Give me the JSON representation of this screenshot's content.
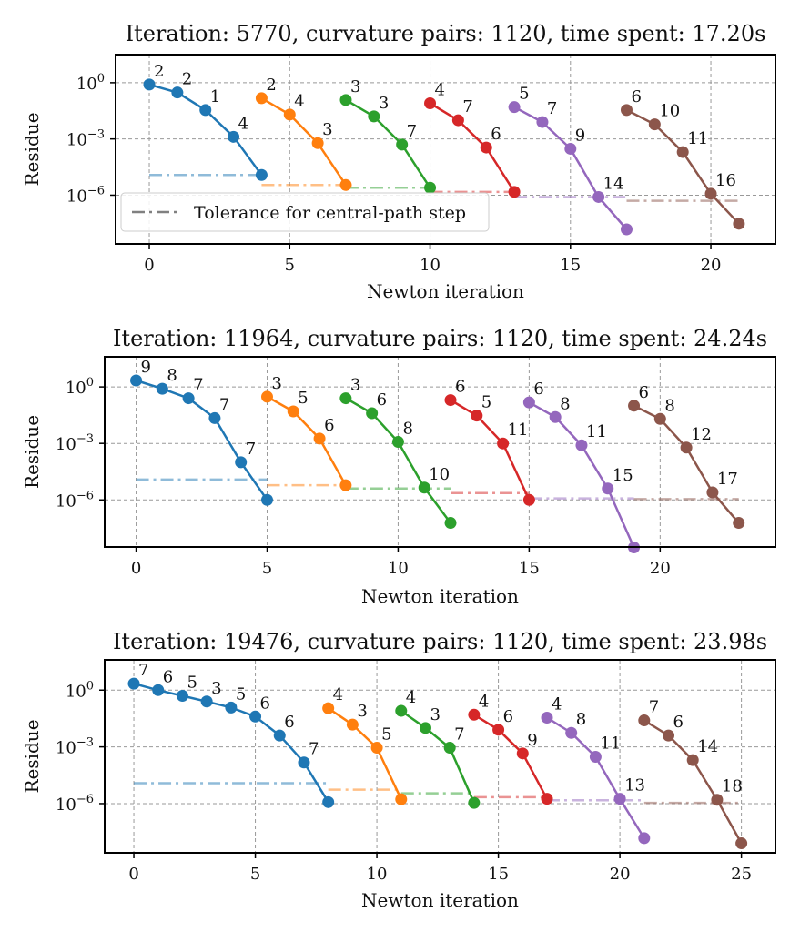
{
  "chart_data": [
    {
      "type": "line",
      "title": "Iteration: 5770, curvature pairs: 1120, time spent: 17.20s",
      "xlabel": "Newton iteration",
      "ylabel": "Residue",
      "xlim": [
        -1.2,
        22.3
      ],
      "ylim_log10": [
        -8.6,
        1.5
      ],
      "y_scale": "log",
      "xticks": [
        0,
        5,
        10,
        15,
        20
      ],
      "yticks": [
        {
          "exp": 0,
          "label_base": "10",
          "label_exp": "0"
        },
        {
          "exp": -3,
          "label_base": "10",
          "label_exp": "−3"
        },
        {
          "exp": -6,
          "label_base": "10",
          "label_exp": "−6"
        }
      ],
      "grid": true,
      "legend": {
        "location": "lower-left",
        "entries": [
          "Tolerance for central-path step"
        ]
      },
      "series": [
        {
          "color": "#1f77b4",
          "x": [
            0,
            1,
            2,
            3,
            4
          ],
          "y": [
            0.8,
            0.3,
            0.035,
            0.0013,
            1.2e-05
          ],
          "labels": [
            "2",
            "2",
            "1",
            "4",
            ""
          ],
          "tolerance": {
            "x": [
              0,
              4
            ],
            "y": 1.2e-05
          }
        },
        {
          "color": "#ff7f0e",
          "x": [
            4,
            5,
            6,
            7
          ],
          "y": [
            0.15,
            0.02,
            0.0006,
            3.5e-06
          ],
          "labels": [
            "2",
            "4",
            "3",
            ""
          ],
          "tolerance": {
            "x": [
              4,
              7
            ],
            "y": 3.5e-06
          }
        },
        {
          "color": "#2ca02c",
          "x": [
            7,
            8,
            9,
            10
          ],
          "y": [
            0.12,
            0.016,
            0.0005,
            2.5e-06
          ],
          "labels": [
            "3",
            "3",
            "7",
            ""
          ],
          "tolerance": {
            "x": [
              7,
              10
            ],
            "y": 2.5e-06
          }
        },
        {
          "color": "#d62728",
          "x": [
            10,
            11,
            12,
            13
          ],
          "y": [
            0.08,
            0.01,
            0.00035,
            1.5e-06
          ],
          "labels": [
            "4",
            "7",
            "6",
            ""
          ],
          "tolerance": {
            "x": [
              10,
              13
            ],
            "y": 1.5e-06
          }
        },
        {
          "color": "#9467bd",
          "x": [
            13,
            14,
            15,
            16,
            17
          ],
          "y": [
            0.05,
            0.008,
            0.0003,
            8e-07,
            1.5e-08
          ],
          "labels": [
            "5",
            "7",
            "9",
            "14",
            ""
          ],
          "tolerance": {
            "x": [
              13,
              17
            ],
            "y": 8e-07
          }
        },
        {
          "color": "#8c564b",
          "x": [
            17,
            18,
            19,
            20,
            21
          ],
          "y": [
            0.035,
            0.006,
            0.0002,
            1.2e-06,
            3e-08
          ],
          "labels": [
            "6",
            "10",
            "11",
            "16",
            ""
          ],
          "tolerance": {
            "x": [
              17,
              21
            ],
            "y": 5e-07
          }
        }
      ]
    },
    {
      "type": "line",
      "title": "Iteration: 11964, curvature pairs: 1120, time spent: 24.24s",
      "xlabel": "Newton iteration",
      "ylabel": "Residue",
      "xlim": [
        -1.2,
        24.4
      ],
      "ylim_log10": [
        -8.5,
        1.6
      ],
      "y_scale": "log",
      "xticks": [
        0,
        5,
        10,
        15,
        20
      ],
      "yticks": [
        {
          "exp": 0,
          "label_base": "10",
          "label_exp": "0"
        },
        {
          "exp": -3,
          "label_base": "10",
          "label_exp": "−3"
        },
        {
          "exp": -6,
          "label_base": "10",
          "label_exp": "−6"
        }
      ],
      "grid": true,
      "series": [
        {
          "color": "#1f77b4",
          "x": [
            0,
            1,
            2,
            3,
            4,
            5
          ],
          "y": [
            2.2,
            0.8,
            0.25,
            0.022,
            0.0001,
            1e-06
          ],
          "labels": [
            "9",
            "8",
            "7",
            "7",
            "7",
            ""
          ],
          "tolerance": {
            "x": [
              0,
              5
            ],
            "y": 1.2e-05
          }
        },
        {
          "color": "#ff7f0e",
          "x": [
            5,
            6,
            7,
            8
          ],
          "y": [
            0.3,
            0.05,
            0.0018,
            6e-06
          ],
          "labels": [
            "3",
            "5",
            "6",
            ""
          ],
          "tolerance": {
            "x": [
              5,
              8
            ],
            "y": 6e-06
          }
        },
        {
          "color": "#2ca02c",
          "x": [
            8,
            9,
            10,
            11,
            12
          ],
          "y": [
            0.25,
            0.04,
            0.0012,
            4.5e-06,
            6e-08
          ],
          "labels": [
            "3",
            "6",
            "8",
            "10",
            ""
          ],
          "tolerance": {
            "x": [
              8,
              12
            ],
            "y": 4e-06
          }
        },
        {
          "color": "#d62728",
          "x": [
            12,
            13,
            14,
            15
          ],
          "y": [
            0.2,
            0.03,
            0.001,
            1e-06
          ],
          "labels": [
            "6",
            "5",
            "11",
            ""
          ],
          "tolerance": {
            "x": [
              12,
              15
            ],
            "y": 2.3e-06
          }
        },
        {
          "color": "#9467bd",
          "x": [
            15,
            16,
            17,
            18,
            19
          ],
          "y": [
            0.15,
            0.025,
            0.0008,
            4e-06,
            3e-09
          ],
          "labels": [
            "6",
            "8",
            "11",
            "15",
            ""
          ],
          "tolerance": {
            "x": [
              15,
              19
            ],
            "y": 1.2e-06
          }
        },
        {
          "color": "#8c564b",
          "x": [
            19,
            20,
            21,
            22,
            23
          ],
          "y": [
            0.1,
            0.02,
            0.0006,
            2.5e-06,
            6e-08
          ],
          "labels": [
            "6",
            "8",
            "12",
            "17",
            ""
          ],
          "tolerance": {
            "x": [
              19,
              23
            ],
            "y": 1.1e-06
          }
        }
      ]
    },
    {
      "type": "line",
      "title": "Iteration: 19476, curvature pairs: 1120, time spent: 23.98s",
      "xlabel": "Newton iteration",
      "ylabel": "Residue",
      "xlim": [
        -1.2,
        26.4
      ],
      "ylim_log10": [
        -8.6,
        1.6
      ],
      "y_scale": "log",
      "xticks": [
        0,
        5,
        10,
        15,
        20,
        25
      ],
      "yticks": [
        {
          "exp": 0,
          "label_base": "10",
          "label_exp": "0"
        },
        {
          "exp": -3,
          "label_base": "10",
          "label_exp": "−3"
        },
        {
          "exp": -6,
          "label_base": "10",
          "label_exp": "−6"
        }
      ],
      "grid": true,
      "series": [
        {
          "color": "#1f77b4",
          "x": [
            0,
            1,
            2,
            3,
            4,
            5,
            6,
            7,
            8
          ],
          "y": [
            2.2,
            1.0,
            0.5,
            0.25,
            0.12,
            0.04,
            0.004,
            0.00015,
            1.2e-06
          ],
          "labels": [
            "7",
            "6",
            "5",
            "3",
            "5",
            "6",
            "6",
            "7",
            ""
          ],
          "tolerance": {
            "x": [
              0,
              8
            ],
            "y": 1.2e-05
          }
        },
        {
          "color": "#ff7f0e",
          "x": [
            8,
            9,
            10,
            11
          ],
          "y": [
            0.11,
            0.015,
            0.0009,
            1.7e-06
          ],
          "labels": [
            "4",
            "3",
            "5",
            ""
          ],
          "tolerance": {
            "x": [
              8,
              11
            ],
            "y": 5.5e-06
          }
        },
        {
          "color": "#2ca02c",
          "x": [
            11,
            12,
            13,
            14
          ],
          "y": [
            0.08,
            0.01,
            0.0009,
            1.1e-06
          ],
          "labels": [
            "4",
            "3",
            "7",
            ""
          ],
          "tolerance": {
            "x": [
              11,
              14
            ],
            "y": 3.5e-06
          }
        },
        {
          "color": "#d62728",
          "x": [
            14,
            15,
            16,
            17
          ],
          "y": [
            0.05,
            0.008,
            0.00045,
            1.8e-06
          ],
          "labels": [
            "4",
            "6",
            "9",
            ""
          ],
          "tolerance": {
            "x": [
              14,
              17
            ],
            "y": 2.2e-06
          }
        },
        {
          "color": "#9467bd",
          "x": [
            17,
            18,
            19,
            20,
            21
          ],
          "y": [
            0.035,
            0.0055,
            0.0003,
            1.8e-06,
            1.5e-08
          ],
          "labels": [
            "4",
            "8",
            "11",
            "13",
            ""
          ],
          "tolerance": {
            "x": [
              17,
              21
            ],
            "y": 1.5e-06
          }
        },
        {
          "color": "#8c564b",
          "x": [
            21,
            22,
            23,
            24,
            25
          ],
          "y": [
            0.025,
            0.004,
            0.0002,
            1.6e-06,
            8e-09
          ],
          "labels": [
            "7",
            "6",
            "14",
            "18",
            ""
          ],
          "tolerance": {
            "x": [
              21,
              25
            ],
            "y": 1.1e-06
          }
        }
      ]
    }
  ]
}
